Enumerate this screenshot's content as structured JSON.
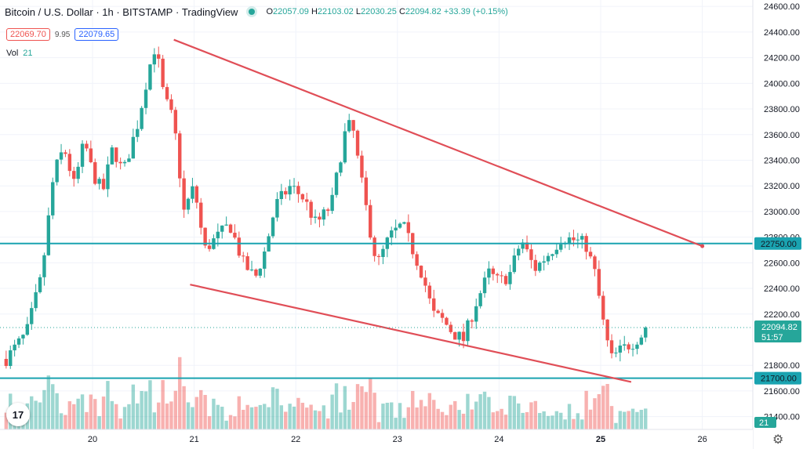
{
  "header": {
    "symbol": "Bitcoin / U.S. Dollar",
    "interval": "1h",
    "exchange": "BITSTAMP",
    "platform": "TradingView",
    "open_label": "O",
    "open": "22057.09",
    "high_label": "H",
    "high": "22103.02",
    "low_label": "L",
    "low": "22030.25",
    "close_label": "C",
    "close": "22094.82",
    "change": "+33.39 (+0.15%)"
  },
  "bid_ask": {
    "sell": "22069.70",
    "spread": "9.95",
    "buy": "22079.65"
  },
  "volume_legend": {
    "label": "Vol",
    "value": "21"
  },
  "logo_text": "17",
  "colors": {
    "up": "#26a69a",
    "down": "#ef5350",
    "trend": "#e04e57",
    "level": "#1aa3b0"
  },
  "chart_data": {
    "type": "candlestick",
    "y_axis": {
      "min": 21300,
      "max": 24650,
      "ticks": [
        24600,
        24400,
        24200,
        24000,
        23800,
        23600,
        23400,
        23200,
        23000,
        22800,
        22600,
        22400,
        22200,
        21800,
        21600,
        21400
      ],
      "tick_labels": [
        "24600.00",
        "24400.00",
        "24200.00",
        "24000.00",
        "23800.00",
        "23600.00",
        "23400.00",
        "23200.00",
        "23000.00",
        "22800.00",
        "22600.00",
        "22400.00",
        "22200.00",
        "21800.00",
        "21600.00",
        "21400.00"
      ]
    },
    "x_axis": {
      "ticks": [
        20,
        21,
        22,
        23,
        24,
        25,
        26
      ],
      "tick_labels": [
        "20",
        "21",
        "22",
        "23",
        "24",
        "25",
        "26"
      ],
      "bold_tick": "25"
    },
    "horizontal_levels": [
      {
        "value": 22750,
        "label": "22750.00"
      },
      {
        "value": 21700,
        "label": "21700.00"
      }
    ],
    "last_price": {
      "value": 22094.82,
      "label": "22094.82",
      "countdown": "51:57"
    },
    "volume_badge": "21",
    "trendlines": [
      {
        "name": "upper",
        "x1": 20.8,
        "y1": 24340,
        "x2": 26.0,
        "y2": 22730
      },
      {
        "name": "lower",
        "x1": 20.96,
        "y1": 22430,
        "x2": 25.3,
        "y2": 21670
      }
    ],
    "price_path": [
      [
        19.15,
        21850
      ],
      [
        19.35,
        22050
      ],
      [
        19.5,
        22500
      ],
      [
        19.62,
        23300
      ],
      [
        19.72,
        23500
      ],
      [
        19.82,
        23200
      ],
      [
        19.92,
        23550
      ],
      [
        20.0,
        23300
      ],
      [
        20.1,
        23150
      ],
      [
        20.2,
        23500
      ],
      [
        20.3,
        23300
      ],
      [
        20.45,
        23700
      ],
      [
        20.55,
        24100
      ],
      [
        20.62,
        24300
      ],
      [
        20.7,
        23900
      ],
      [
        20.8,
        23700
      ],
      [
        20.9,
        23000
      ],
      [
        21.0,
        23200
      ],
      [
        21.1,
        22700
      ],
      [
        21.2,
        22780
      ],
      [
        21.35,
        22900
      ],
      [
        21.48,
        22600
      ],
      [
        21.6,
        22480
      ],
      [
        21.7,
        22700
      ],
      [
        21.8,
        23050
      ],
      [
        21.95,
        23200
      ],
      [
        22.08,
        23100
      ],
      [
        22.2,
        22900
      ],
      [
        22.35,
        23050
      ],
      [
        22.48,
        23600
      ],
      [
        22.55,
        23700
      ],
      [
        22.62,
        23350
      ],
      [
        22.72,
        22900
      ],
      [
        22.8,
        22580
      ],
      [
        22.92,
        22800
      ],
      [
        23.05,
        22900
      ],
      [
        23.15,
        22700
      ],
      [
        23.25,
        22500
      ],
      [
        23.35,
        22200
      ],
      [
        23.45,
        22150
      ],
      [
        23.55,
        22050
      ],
      [
        23.65,
        22000
      ],
      [
        23.78,
        22300
      ],
      [
        23.9,
        22520
      ],
      [
        24.0,
        22450
      ],
      [
        24.1,
        22500
      ],
      [
        24.22,
        22780
      ],
      [
        24.35,
        22550
      ],
      [
        24.5,
        22680
      ],
      [
        24.62,
        22800
      ],
      [
        24.72,
        22780
      ],
      [
        24.85,
        22750
      ],
      [
        24.95,
        22500
      ],
      [
        25.02,
        22150
      ],
      [
        25.1,
        21850
      ],
      [
        25.2,
        21920
      ],
      [
        25.32,
        21980
      ],
      [
        25.48,
        22094
      ]
    ]
  }
}
